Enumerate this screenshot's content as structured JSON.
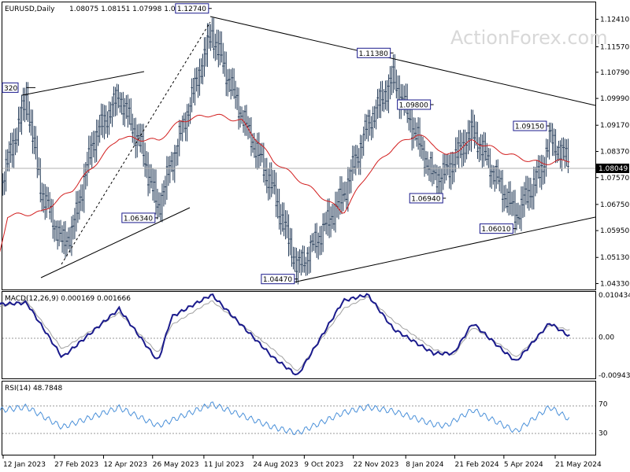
{
  "header": {
    "symbol": "EURUSD,Daily",
    "ohlc": "1.08075 1.08151 1.07998 1.08049",
    "watermark": "ActionForex.com"
  },
  "colors": {
    "candle": "#233a57",
    "ma": "#d21e1e",
    "trendline": "#000000",
    "macd_main": "#1a1a8c",
    "macd_signal": "#a0a0a0",
    "rsi": "#4a90d9",
    "current_price_bg": "#000000",
    "current_price_text": "#ffffff"
  },
  "chart_data": [
    {
      "type": "line",
      "panel": "price",
      "title": "EURUSD,Daily",
      "ylim": [
        1.0415,
        1.1295
      ],
      "y_ticks": [
        "1.12410",
        "1.11570",
        "1.10790",
        "1.09990",
        "1.09170",
        "1.08370",
        "1.07570",
        "1.06750",
        "1.05950",
        "1.05130",
        "1.04330"
      ],
      "x_ticks": [
        "12 Jan 2023",
        "27 Feb 2023",
        "12 Apr 2023",
        "26 May 2023",
        "11 Jul 2023",
        "24 Aug 2023",
        "9 Oct 2023",
        "22 Nov 2023",
        "8 Jan 2024",
        "21 Feb 2024",
        "5 Apr 2024",
        "21 May 2024"
      ],
      "current_price": "1.08049",
      "annotations": [
        {
          "label": "1.12740",
          "x": "18 Jul 2023",
          "y": 1.1274
        },
        {
          "label": "1.11380",
          "x": "28 Dec 2023",
          "y": 1.1138
        },
        {
          "label": "1.09800",
          "x": "2 Feb 2024",
          "y": 1.098
        },
        {
          "label": "1.09150",
          "x": "16 May 2024",
          "y": 1.0915
        },
        {
          "label": "1.06940",
          "x": "13 Feb 2024",
          "y": 1.0694
        },
        {
          "label": "1.06010",
          "x": "16 Apr 2024",
          "y": 1.0601
        },
        {
          "label": "1.06340",
          "x": "31 May 2023",
          "y": 1.0634
        },
        {
          "label": "1.04470",
          "x": "3 Oct 2023",
          "y": 1.0447
        },
        {
          "label": "320",
          "x": "2 Feb 2023",
          "y": 1.1032
        }
      ],
      "series": [
        {
          "name": "Close",
          "x": [
            "2 Jan 2023",
            "16 Jan 2023",
            "2 Feb 2023",
            "15 Feb 2023",
            "6 Mar 2023",
            "15 Mar 2023",
            "3 Apr 2023",
            "26 Apr 2023",
            "16 May 2023",
            "31 May 2023",
            "12 Jun 2023",
            "18 Jul 2023",
            "14 Aug 2023",
            "11 Sep 2023",
            "3 Oct 2023",
            "23 Oct 2023",
            "13 Nov 2023",
            "5 Dec 2023",
            "28 Dec 2023",
            "18 Jan 2024",
            "2 Feb 2024",
            "13 Feb 2024",
            "8 Mar 2024",
            "16 Apr 2024",
            "9 May 2024",
            "16 May 2024",
            "3 Jun 2024"
          ],
          "y": [
            1.066,
            1.08,
            1.1,
            1.072,
            1.056,
            1.059,
            1.087,
            1.101,
            1.085,
            1.066,
            1.08,
            1.12,
            1.095,
            1.072,
            1.048,
            1.058,
            1.07,
            1.092,
            1.106,
            1.088,
            1.076,
            1.077,
            1.09,
            1.064,
            1.078,
            1.088,
            1.0805
          ]
        },
        {
          "name": "MA",
          "x": [
            "2 Jan 2023",
            "16 Jan 2023",
            "15 Feb 2023",
            "15 Mar 2023",
            "26 Apr 2023",
            "31 May 2023",
            "20 Jun 2023",
            "18 Jul 2023",
            "14 Aug 2023",
            "11 Sep 2023",
            "13 Nov 2023",
            "5 Dec 2023",
            "28 Dec 2023",
            "18 Jan 2024",
            "2 Feb 2024",
            "13 Feb 2024",
            "8 Mar 2024",
            "16 Apr 2024",
            "9 May 2024",
            "3 Jun 2024"
          ],
          "y": [
            1.042,
            1.064,
            1.065,
            1.072,
            1.088,
            1.087,
            1.093,
            1.095,
            1.093,
            1.081,
            1.065,
            1.077,
            1.085,
            1.089,
            1.086,
            1.082,
            1.087,
            1.082,
            1.08,
            1.081
          ]
        }
      ]
    },
    {
      "type": "line",
      "panel": "macd",
      "title": "MACD(12,26,9) 0.000169 0.001666",
      "ylim": [
        -0.01,
        0.011
      ],
      "y_ticks": [
        "0.010434",
        "0.00",
        "-0.009436"
      ],
      "series": [
        {
          "name": "MACD",
          "x": [
            "2 Jan 2023",
            "2 Feb 2023",
            "6 Mar 2023",
            "26 Apr 2023",
            "31 May 2023",
            "12 Jun 2023",
            "18 Jul 2023",
            "11 Sep 2023",
            "3 Oct 2023",
            "13 Nov 2023",
            "5 Dec 2023",
            "28 Dec 2023",
            "2 Feb 2024",
            "20 Feb 2024",
            "8 Mar 2024",
            "5 Apr 2024",
            "16 Apr 2024",
            "16 May 2024",
            "3 Jun 2024"
          ],
          "y": [
            0.008,
            0.0085,
            -0.005,
            0.007,
            -0.006,
            0.005,
            0.0105,
            -0.005,
            -0.0095,
            0.009,
            0.0105,
            0.002,
            -0.004,
            -0.004,
            0.0035,
            -0.0035,
            -0.006,
            0.0035,
            0.0002
          ]
        },
        {
          "name": "Signal",
          "x": [
            "2 Jan 2023",
            "2 Feb 2023",
            "6 Mar 2023",
            "26 Apr 2023",
            "31 May 2023",
            "12 Jun 2023",
            "18 Jul 2023",
            "11 Sep 2023",
            "3 Oct 2023",
            "13 Nov 2023",
            "5 Dec 2023",
            "28 Dec 2023",
            "2 Feb 2024",
            "20 Feb 2024",
            "8 Mar 2024",
            "5 Apr 2024",
            "16 Apr 2024",
            "16 May 2024",
            "3 Jun 2024"
          ],
          "y": [
            0.007,
            0.009,
            -0.003,
            0.006,
            -0.004,
            0.003,
            0.009,
            -0.003,
            -0.0085,
            0.007,
            0.01,
            0.004,
            -0.003,
            -0.0045,
            0.0025,
            -0.0025,
            -0.005,
            0.003,
            0.0017
          ]
        }
      ]
    },
    {
      "type": "line",
      "panel": "rsi",
      "title": "RSI(14) 48.7848",
      "ylim": [
        0,
        100
      ],
      "y_ticks": [
        "70",
        "30"
      ],
      "series": [
        {
          "name": "RSI",
          "x": [
            "2 Jan 2023",
            "2 Feb 2023",
            "6 Mar 2023",
            "26 Apr 2023",
            "31 May 2023",
            "18 Jul 2023",
            "11 Sep 2023",
            "3 Oct 2023",
            "13 Nov 2023",
            "5 Dec 2023",
            "28 Dec 2023",
            "2 Feb 2024",
            "13 Feb 2024",
            "8 Mar 2024",
            "16 Apr 2024",
            "16 May 2024",
            "3 Jun 2024"
          ],
          "y": [
            60,
            66,
            38,
            65,
            40,
            70,
            38,
            30,
            58,
            66,
            60,
            42,
            40,
            62,
            32,
            66,
            48.8
          ]
        }
      ]
    }
  ]
}
